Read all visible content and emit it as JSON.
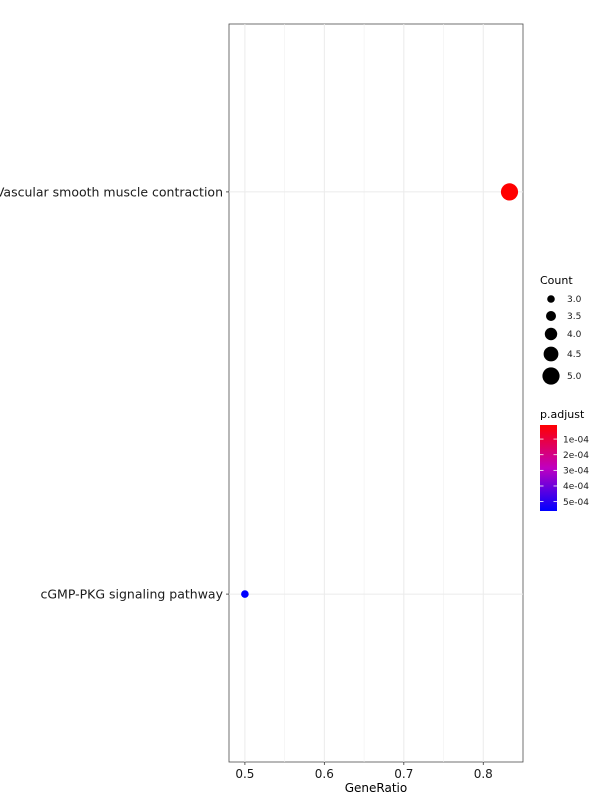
{
  "chart_data": {
    "type": "scatter",
    "title": "",
    "xlabel": "GeneRatio",
    "ylabel": "",
    "xlim": [
      0.48,
      0.85
    ],
    "xticks": [
      0.5,
      0.6,
      0.7,
      0.8
    ],
    "xtick_labels": [
      "0.5",
      "0.6",
      "0.7",
      "0.8"
    ],
    "categories": [
      "Vascular smooth muscle contraction",
      "cGMP-PKG signaling pathway"
    ],
    "points": [
      {
        "category": "Vascular smooth muscle contraction",
        "gene_ratio": 0.833,
        "count": 5,
        "p_adjust": 1e-05
      },
      {
        "category": "cGMP-PKG signaling pathway",
        "gene_ratio": 0.5,
        "count": 3,
        "p_adjust": 0.00056
      }
    ],
    "grid": true,
    "legend_placement": "right",
    "size_legend": {
      "title": "Count",
      "values": [
        3.0,
        3.5,
        4.0,
        4.5,
        5.0
      ],
      "labels": [
        "3.0",
        "3.5",
        "4.0",
        "4.5",
        "5.0"
      ]
    },
    "color_legend": {
      "title": "p.adjust",
      "ticks": [
        0.0001,
        0.0002,
        0.0003,
        0.0004,
        0.0005
      ],
      "labels": [
        "1e-04",
        "2e-04",
        "3e-04",
        "4e-04",
        "5e-04"
      ],
      "range": [
        1e-05,
        0.00056
      ],
      "low_color": "#ff0000",
      "high_color": "#0000ff"
    }
  }
}
